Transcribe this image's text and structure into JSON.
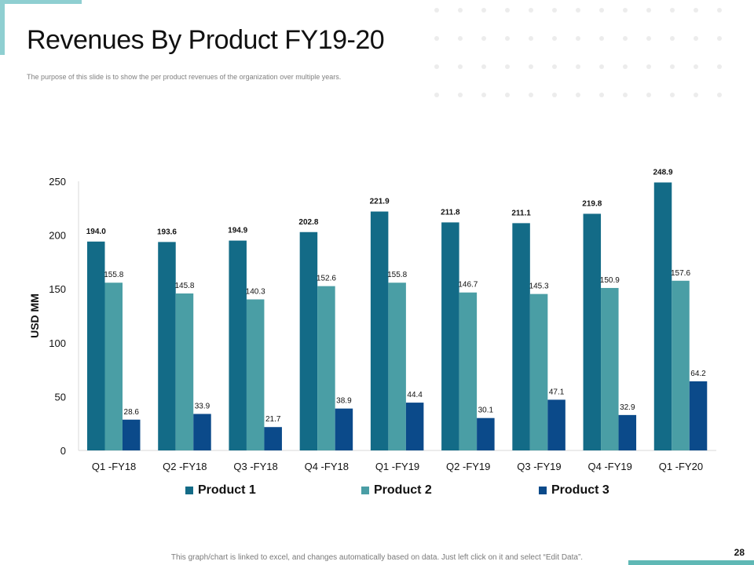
{
  "slide": {
    "title": "Revenues By Product FY19-20",
    "subtitle": "The purpose of this slide is to show the per product revenues of the organization over multiple years.",
    "footer_note": "This graph/chart is linked to excel, and changes automatically  based on data. Just left click on it and select “Edit Data”.",
    "page_number": "28"
  },
  "chart_data": {
    "type": "bar",
    "title": "",
    "xlabel": "",
    "ylabel": "USD MM",
    "ylim": [
      0,
      250
    ],
    "yticks": [
      0,
      50,
      100,
      150,
      200,
      250
    ],
    "grid": false,
    "legend_position": "bottom",
    "categories": [
      "Q1 -FY18",
      "Q2 -FY18",
      "Q3 -FY18",
      "Q4 -FY18",
      "Q1 -FY19",
      "Q2 -FY19",
      "Q3 -FY19",
      "Q4 -FY19",
      "Q1 -FY20"
    ],
    "series": [
      {
        "name": "Product 1",
        "color": "#136b87",
        "values": [
          194.0,
          193.6,
          194.9,
          202.8,
          221.9,
          211.8,
          211.1,
          219.8,
          248.9
        ],
        "labels": [
          "194.0",
          "193.6",
          "194.9",
          "202.8",
          "221.9",
          "211.8",
          "211.1",
          "219.8",
          "248.9"
        ],
        "label_bold": true
      },
      {
        "name": "Product 2",
        "color": "#4a9ea5",
        "values": [
          155.8,
          145.8,
          140.3,
          152.6,
          155.8,
          146.7,
          145.3,
          150.9,
          157.6
        ],
        "labels": [
          "155.8",
          "145.8",
          "140.3",
          "152.6",
          "155.8",
          "146.7",
          "145.3",
          "150.9",
          "157.6"
        ],
        "label_bold": false
      },
      {
        "name": "Product 3",
        "color": "#0b4a8a",
        "values": [
          28.6,
          33.9,
          21.7,
          38.9,
          44.4,
          30.1,
          47.1,
          32.9,
          64.2
        ],
        "labels": [
          "28.6",
          "33.9",
          "21.7",
          "38.9",
          "44.4",
          "30.1",
          "47.1",
          "32.9",
          "64.2"
        ],
        "label_bold": false
      }
    ]
  }
}
